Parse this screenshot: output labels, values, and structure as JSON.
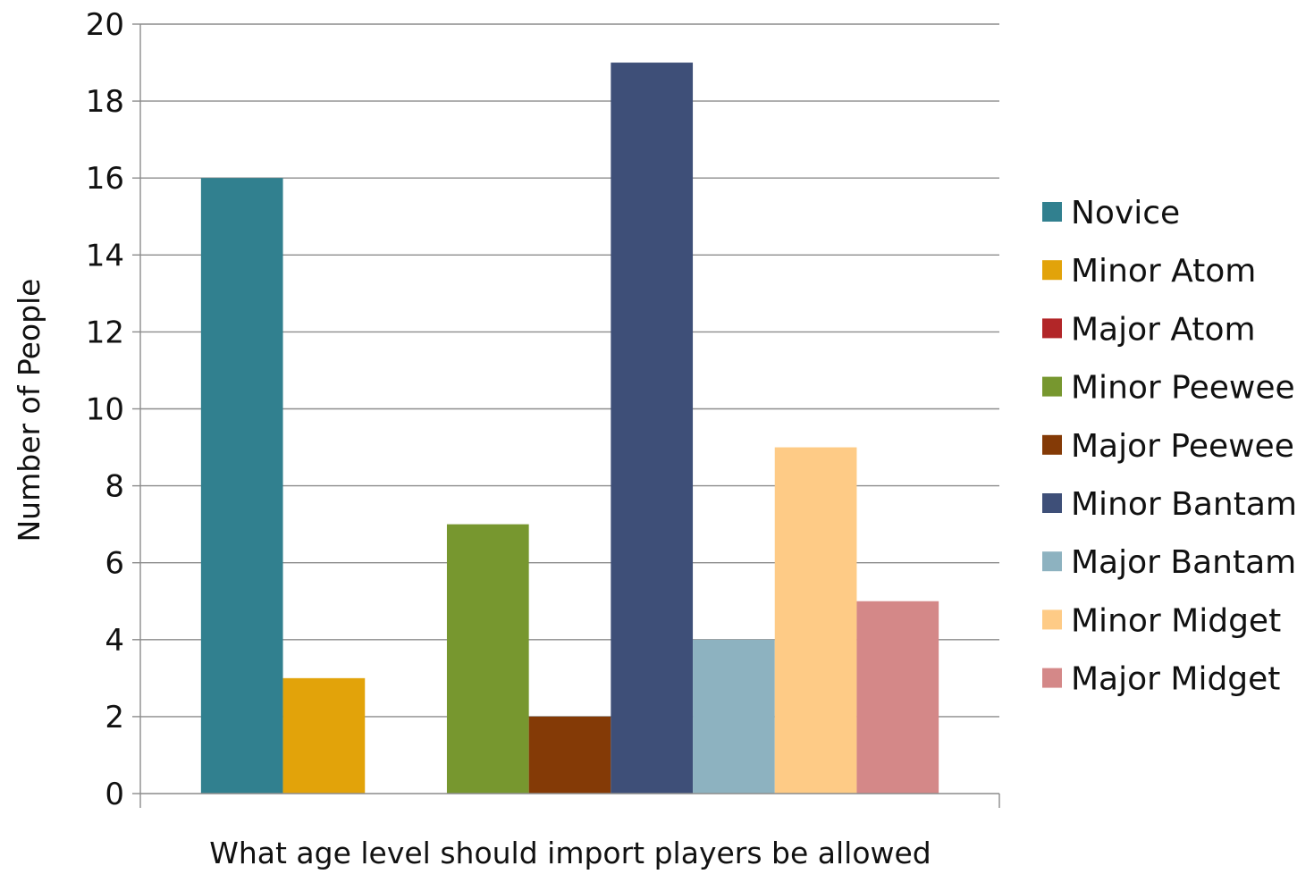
{
  "chart_data": {
    "type": "bar",
    "title": "",
    "xlabel": "What age level should import players be allowed",
    "ylabel": "Number of People",
    "ylim": [
      0,
      20
    ],
    "yticks": [
      0,
      2,
      4,
      6,
      8,
      10,
      12,
      14,
      16,
      18,
      20
    ],
    "categories": [
      ""
    ],
    "grid": true,
    "legend_position": "right",
    "series": [
      {
        "name": "Novice",
        "values": [
          16
        ],
        "color": "#31808F"
      },
      {
        "name": "Minor Atom",
        "values": [
          3
        ],
        "color": "#E2A30A"
      },
      {
        "name": "Major Atom",
        "values": [
          0
        ],
        "color": "#B22628"
      },
      {
        "name": "Minor Peewee",
        "values": [
          7
        ],
        "color": "#77972F"
      },
      {
        "name": "Major Peewee",
        "values": [
          2
        ],
        "color": "#843A06"
      },
      {
        "name": "Minor Bantam",
        "values": [
          19
        ],
        "color": "#3E4F78"
      },
      {
        "name": "Major Bantam",
        "values": [
          4
        ],
        "color": "#8DB2C0"
      },
      {
        "name": "Minor Midget",
        "values": [
          9
        ],
        "color": "#FECB86"
      },
      {
        "name": "Major Midget",
        "values": [
          5
        ],
        "color": "#D48888"
      }
    ]
  }
}
